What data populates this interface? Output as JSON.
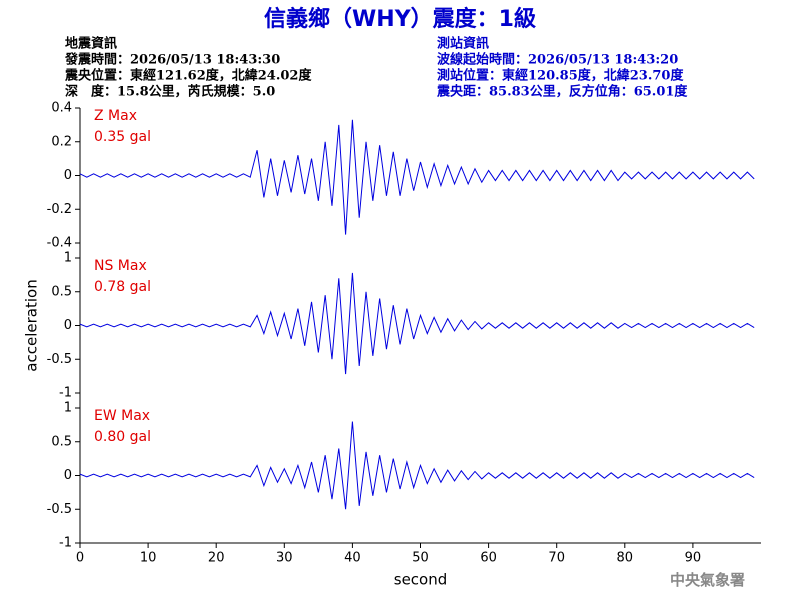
{
  "header": {
    "title": "信義鄉（WHY）震度：1級",
    "left": [
      "地震資訊",
      "發震時間：2026/05/13 18:43:30",
      "震央位置：東經121.62度，北緯24.02度",
      "深　度：15.8公里，芮氏規模：5.0"
    ],
    "right": [
      "測站資訊",
      "波線起始時間：2026/05/13 18:43:20",
      "測站位置：東經120.85度，北緯23.70度",
      "震央距：85.83公里，反方位角：65.01度"
    ],
    "watermark": "中央氣象署"
  },
  "chart_data": [
    {
      "type": "line",
      "annotations": [
        "Z Max",
        "0.35 gal"
      ],
      "color": "#0000e0",
      "xlim": [
        0,
        100
      ],
      "ylim": [
        -0.4,
        0.4
      ],
      "yticks": [
        0.4,
        0.2,
        0,
        -0.2,
        -0.4
      ],
      "x": [
        0,
        1,
        2,
        3,
        4,
        5,
        6,
        7,
        8,
        9,
        10,
        11,
        12,
        13,
        14,
        15,
        16,
        17,
        18,
        19,
        20,
        21,
        22,
        23,
        24,
        25,
        26,
        27,
        28,
        29,
        30,
        31,
        32,
        33,
        34,
        35,
        36,
        37,
        38,
        39,
        40,
        41,
        42,
        43,
        44,
        45,
        46,
        47,
        48,
        49,
        50,
        51,
        52,
        53,
        54,
        55,
        56,
        57,
        58,
        59,
        60,
        61,
        62,
        63,
        64,
        65,
        66,
        67,
        68,
        69,
        70,
        71,
        72,
        73,
        74,
        75,
        76,
        77,
        78,
        79,
        80,
        81,
        82,
        83,
        84,
        85,
        86,
        87,
        88,
        89,
        90,
        91,
        92,
        93,
        94,
        95,
        96,
        97,
        98,
        99
      ],
      "values": [
        0.01,
        -0.01,
        0.01,
        -0.01,
        0.01,
        -0.01,
        0.01,
        -0.01,
        0.01,
        -0.01,
        0.01,
        -0.01,
        0.01,
        -0.01,
        0.01,
        -0.01,
        0.01,
        -0.01,
        0.01,
        -0.01,
        0.01,
        -0.01,
        0.01,
        -0.01,
        0.01,
        -0.01,
        0.15,
        -0.13,
        0.1,
        -0.12,
        0.09,
        -0.1,
        0.12,
        -0.11,
        0.1,
        -0.15,
        0.2,
        -0.18,
        0.3,
        -0.35,
        0.33,
        -0.25,
        0.2,
        -0.15,
        0.18,
        -0.12,
        0.14,
        -0.12,
        0.1,
        -0.09,
        0.08,
        -0.07,
        0.07,
        -0.06,
        0.06,
        -0.05,
        0.05,
        -0.05,
        0.04,
        -0.04,
        0.03,
        -0.03,
        0.03,
        -0.03,
        0.03,
        -0.03,
        0.03,
        -0.03,
        0.03,
        -0.03,
        0.03,
        -0.03,
        0.03,
        -0.03,
        0.03,
        -0.03,
        0.03,
        -0.03,
        0.03,
        -0.03,
        0.02,
        -0.02,
        0.02,
        -0.02,
        0.02,
        -0.02,
        0.02,
        -0.02,
        0.02,
        -0.02,
        0.02,
        -0.02,
        0.02,
        -0.02,
        0.02,
        -0.02,
        0.02,
        -0.02,
        0.02,
        -0.02
      ]
    },
    {
      "type": "line",
      "annotations": [
        "NS Max",
        "0.78 gal"
      ],
      "color": "#0000e0",
      "ylabel": "acceleration",
      "xlim": [
        0,
        100
      ],
      "ylim": [
        -1,
        1
      ],
      "yticks": [
        1,
        0.5,
        0,
        -0.5,
        -1
      ],
      "x": [
        0,
        1,
        2,
        3,
        4,
        5,
        6,
        7,
        8,
        9,
        10,
        11,
        12,
        13,
        14,
        15,
        16,
        17,
        18,
        19,
        20,
        21,
        22,
        23,
        24,
        25,
        26,
        27,
        28,
        29,
        30,
        31,
        32,
        33,
        34,
        35,
        36,
        37,
        38,
        39,
        40,
        41,
        42,
        43,
        44,
        45,
        46,
        47,
        48,
        49,
        50,
        51,
        52,
        53,
        54,
        55,
        56,
        57,
        58,
        59,
        60,
        61,
        62,
        63,
        64,
        65,
        66,
        67,
        68,
        69,
        70,
        71,
        72,
        73,
        74,
        75,
        76,
        77,
        78,
        79,
        80,
        81,
        82,
        83,
        84,
        85,
        86,
        87,
        88,
        89,
        90,
        91,
        92,
        93,
        94,
        95,
        96,
        97,
        98,
        99
      ],
      "values": [
        0.02,
        -0.02,
        0.02,
        -0.02,
        0.02,
        -0.02,
        0.02,
        -0.02,
        0.02,
        -0.02,
        0.02,
        -0.02,
        0.02,
        -0.02,
        0.02,
        -0.02,
        0.02,
        -0.02,
        0.02,
        -0.02,
        0.02,
        -0.02,
        0.02,
        -0.02,
        0.02,
        -0.02,
        0.15,
        -0.12,
        0.2,
        -0.15,
        0.18,
        -0.2,
        0.25,
        -0.3,
        0.35,
        -0.4,
        0.45,
        -0.5,
        0.7,
        -0.72,
        0.78,
        -0.6,
        0.5,
        -0.45,
        0.4,
        -0.35,
        0.3,
        -0.28,
        0.25,
        -0.2,
        0.15,
        -0.12,
        0.12,
        -0.1,
        0.1,
        -0.08,
        0.08,
        -0.06,
        0.06,
        -0.05,
        0.04,
        -0.04,
        0.04,
        -0.04,
        0.04,
        -0.04,
        0.04,
        -0.04,
        0.04,
        -0.04,
        0.04,
        -0.04,
        0.04,
        -0.04,
        0.04,
        -0.04,
        0.04,
        -0.04,
        0.04,
        -0.04,
        0.03,
        -0.03,
        0.03,
        -0.03,
        0.03,
        -0.03,
        0.03,
        -0.03,
        0.03,
        -0.03,
        0.03,
        -0.03,
        0.03,
        -0.03,
        0.03,
        -0.03,
        0.03,
        -0.03,
        0.03,
        -0.03
      ]
    },
    {
      "type": "line",
      "annotations": [
        "EW Max",
        "0.80 gal"
      ],
      "color": "#0000e0",
      "xlabel": "second",
      "xlim": [
        0,
        100
      ],
      "xticks": [
        0,
        10,
        20,
        30,
        40,
        50,
        60,
        70,
        80,
        90
      ],
      "ylim": [
        -1,
        1
      ],
      "yticks": [
        1,
        0.5,
        0,
        -0.5,
        -1
      ],
      "x": [
        0,
        1,
        2,
        3,
        4,
        5,
        6,
        7,
        8,
        9,
        10,
        11,
        12,
        13,
        14,
        15,
        16,
        17,
        18,
        19,
        20,
        21,
        22,
        23,
        24,
        25,
        26,
        27,
        28,
        29,
        30,
        31,
        32,
        33,
        34,
        35,
        36,
        37,
        38,
        39,
        40,
        41,
        42,
        43,
        44,
        45,
        46,
        47,
        48,
        49,
        50,
        51,
        52,
        53,
        54,
        55,
        56,
        57,
        58,
        59,
        60,
        61,
        62,
        63,
        64,
        65,
        66,
        67,
        68,
        69,
        70,
        71,
        72,
        73,
        74,
        75,
        76,
        77,
        78,
        79,
        80,
        81,
        82,
        83,
        84,
        85,
        86,
        87,
        88,
        89,
        90,
        91,
        92,
        93,
        94,
        95,
        96,
        97,
        98,
        99
      ],
      "values": [
        0.02,
        -0.02,
        0.02,
        -0.02,
        0.02,
        -0.02,
        0.02,
        -0.02,
        0.02,
        -0.02,
        0.02,
        -0.02,
        0.02,
        -0.02,
        0.02,
        -0.02,
        0.02,
        -0.02,
        0.02,
        -0.02,
        0.02,
        -0.02,
        0.02,
        -0.02,
        0.02,
        -0.02,
        0.15,
        -0.15,
        0.12,
        -0.1,
        0.1,
        -0.12,
        0.15,
        -0.18,
        0.2,
        -0.25,
        0.3,
        -0.35,
        0.4,
        -0.5,
        0.8,
        -0.45,
        0.35,
        -0.3,
        0.3,
        -0.25,
        0.25,
        -0.2,
        0.2,
        -0.18,
        0.15,
        -0.12,
        0.1,
        -0.1,
        0.08,
        -0.08,
        0.07,
        -0.06,
        0.06,
        -0.05,
        0.04,
        -0.04,
        0.04,
        -0.04,
        0.04,
        -0.04,
        0.04,
        -0.04,
        0.04,
        -0.04,
        0.04,
        -0.04,
        0.04,
        -0.04,
        0.04,
        -0.04,
        0.04,
        -0.04,
        0.04,
        -0.04,
        0.03,
        -0.03,
        0.03,
        -0.03,
        0.03,
        -0.03,
        0.03,
        -0.03,
        0.03,
        -0.03,
        0.03,
        -0.03,
        0.03,
        -0.03,
        0.03,
        -0.03,
        0.03,
        -0.03,
        0.03,
        -0.03
      ]
    }
  ]
}
